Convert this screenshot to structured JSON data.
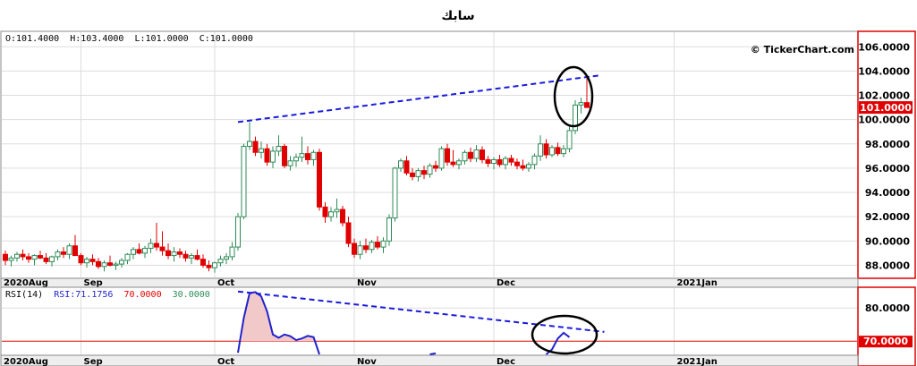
{
  "title": "سابك",
  "watermark": "© TickerChart.com",
  "ohlc_readout": {
    "open": "O:101.4000",
    "high": "H:103.4000",
    "low": "L:101.0000",
    "close": "C:101.0000"
  },
  "rsi_readout": {
    "label": "RSI(14)",
    "value": "RSI:71.1756",
    "upper": "70.0000",
    "lower": "30.0000"
  },
  "colors": {
    "up": "#2e8b57",
    "down": "#e00000",
    "trendline": "#1a1adc",
    "rsi_line": "#2222cc",
    "rsi_fill": "#f2c9c9",
    "overbought": "#e00000",
    "grid": "#dddddd",
    "frame": "#e00000",
    "panel_bg": "#eeeeee"
  },
  "chart_data": [
    {
      "type": "candlestick",
      "ylim": [
        87,
        107.2
      ],
      "y_ticks": [
        88,
        90,
        92,
        94,
        96,
        98,
        100,
        102,
        104,
        106
      ],
      "y_tick_labels": [
        "88.0000",
        "90.0000",
        "92.0000",
        "94.0000",
        "96.0000",
        "98.0000",
        "100.0000",
        "102.0000",
        "104.0000",
        "106.0000"
      ],
      "last_price_label": "101.0000",
      "last_price": 101.0,
      "x_labels": [
        {
          "label": "2020Aug",
          "index": 0
        },
        {
          "label": "Sep",
          "index": 13
        },
        {
          "label": "Oct",
          "index": 36
        },
        {
          "label": "Nov",
          "index": 60
        },
        {
          "label": "Dec",
          "index": 84
        },
        {
          "label": "2021Jan",
          "index": 115
        }
      ],
      "x_count": 140,
      "candles": [
        [
          88.9,
          89.2,
          88.0,
          88.4
        ],
        [
          88.4,
          88.8,
          87.9,
          88.6
        ],
        [
          88.6,
          89.1,
          88.3,
          88.9
        ],
        [
          88.9,
          89.3,
          88.4,
          88.7
        ],
        [
          88.7,
          89.0,
          88.2,
          88.5
        ],
        [
          88.5,
          88.9,
          88.0,
          88.8
        ],
        [
          88.8,
          89.2,
          88.5,
          88.6
        ],
        [
          88.6,
          89.0,
          88.1,
          88.3
        ],
        [
          88.3,
          88.8,
          87.9,
          88.7
        ],
        [
          88.7,
          89.3,
          88.4,
          89.1
        ],
        [
          89.1,
          89.5,
          88.6,
          88.9
        ],
        [
          88.9,
          89.8,
          88.5,
          89.6
        ],
        [
          89.6,
          90.5,
          88.9,
          88.8
        ],
        [
          88.8,
          89.0,
          88.0,
          88.2
        ],
        [
          88.2,
          88.7,
          87.8,
          88.5
        ],
        [
          88.5,
          88.9,
          88.0,
          88.3
        ],
        [
          88.3,
          88.6,
          87.7,
          87.9
        ],
        [
          87.9,
          88.4,
          87.5,
          88.2
        ],
        [
          88.2,
          88.8,
          87.9,
          88.0
        ],
        [
          88.0,
          88.3,
          87.6,
          88.1
        ],
        [
          88.1,
          88.6,
          87.8,
          88.4
        ],
        [
          88.4,
          89.0,
          88.1,
          88.9
        ],
        [
          88.9,
          89.5,
          88.5,
          89.3
        ],
        [
          89.3,
          89.8,
          88.9,
          89.0
        ],
        [
          89.0,
          89.6,
          88.6,
          89.4
        ],
        [
          89.4,
          90.2,
          89.0,
          89.8
        ],
        [
          89.8,
          91.5,
          89.2,
          89.5
        ],
        [
          89.5,
          90.8,
          88.8,
          89.2
        ],
        [
          89.2,
          89.8,
          88.5,
          88.8
        ],
        [
          88.8,
          89.5,
          88.3,
          89.1
        ],
        [
          89.1,
          89.4,
          88.6,
          88.9
        ],
        [
          88.9,
          89.2,
          88.3,
          88.6
        ],
        [
          88.6,
          89.0,
          88.1,
          88.8
        ],
        [
          88.8,
          89.3,
          88.4,
          88.5
        ],
        [
          88.5,
          88.9,
          87.8,
          88.0
        ],
        [
          88.0,
          88.4,
          87.5,
          87.8
        ],
        [
          87.8,
          88.3,
          87.4,
          88.2
        ],
        [
          88.2,
          88.8,
          87.9,
          88.5
        ],
        [
          88.5,
          89.0,
          88.1,
          88.7
        ],
        [
          88.7,
          89.9,
          88.4,
          89.5
        ],
        [
          89.5,
          92.3,
          89.2,
          92.0
        ],
        [
          92.0,
          98.0,
          91.8,
          97.8
        ],
        [
          97.8,
          99.8,
          97.5,
          98.2
        ],
        [
          98.2,
          98.6,
          97.0,
          97.3
        ],
        [
          97.3,
          98.2,
          96.8,
          97.6
        ],
        [
          97.6,
          98.0,
          96.2,
          96.5
        ],
        [
          96.5,
          97.8,
          96.0,
          97.4
        ],
        [
          97.4,
          98.7,
          97.0,
          97.8
        ],
        [
          97.8,
          98.0,
          96.0,
          96.2
        ],
        [
          96.2,
          97.0,
          95.8,
          96.6
        ],
        [
          96.6,
          97.2,
          96.1,
          96.9
        ],
        [
          96.9,
          98.6,
          96.5,
          97.2
        ],
        [
          97.2,
          97.8,
          96.3,
          96.7
        ],
        [
          96.7,
          97.5,
          96.2,
          97.3
        ],
        [
          97.3,
          97.6,
          92.5,
          92.8
        ],
        [
          92.8,
          93.2,
          91.5,
          92.0
        ],
        [
          92.0,
          92.8,
          91.6,
          92.4
        ],
        [
          92.4,
          93.5,
          91.9,
          92.6
        ],
        [
          92.6,
          92.9,
          91.2,
          91.5
        ],
        [
          91.5,
          92.0,
          89.5,
          89.8
        ],
        [
          89.8,
          90.2,
          88.6,
          88.9
        ],
        [
          88.9,
          90.0,
          88.5,
          89.6
        ],
        [
          89.6,
          90.2,
          89.0,
          89.3
        ],
        [
          89.3,
          90.1,
          89.0,
          89.9
        ],
        [
          89.9,
          90.4,
          89.3,
          89.5
        ],
        [
          89.5,
          90.3,
          89.0,
          90.0
        ],
        [
          90.0,
          92.2,
          89.6,
          91.9
        ],
        [
          91.9,
          96.1,
          91.6,
          96.0
        ],
        [
          96.0,
          96.8,
          95.7,
          96.6
        ],
        [
          96.6,
          97.0,
          95.4,
          95.6
        ],
        [
          95.6,
          96.0,
          95.0,
          95.3
        ],
        [
          95.3,
          96.0,
          94.9,
          95.8
        ],
        [
          95.8,
          96.2,
          95.1,
          95.5
        ],
        [
          95.5,
          96.4,
          95.2,
          96.2
        ],
        [
          96.2,
          96.6,
          95.7,
          96.0
        ],
        [
          96.0,
          97.8,
          95.8,
          97.6
        ],
        [
          97.6,
          98.0,
          96.2,
          96.5
        ],
        [
          96.5,
          97.5,
          96.1,
          96.3
        ],
        [
          96.3,
          96.8,
          95.9,
          96.6
        ],
        [
          96.6,
          97.5,
          96.3,
          97.3
        ],
        [
          97.3,
          97.7,
          96.5,
          96.8
        ],
        [
          96.8,
          97.9,
          96.5,
          97.5
        ],
        [
          97.5,
          97.8,
          96.4,
          96.7
        ],
        [
          96.7,
          97.0,
          96.1,
          96.4
        ],
        [
          96.4,
          96.9,
          95.9,
          96.7
        ],
        [
          96.7,
          97.1,
          96.1,
          96.3
        ],
        [
          96.3,
          97.0,
          95.9,
          96.8
        ],
        [
          96.8,
          97.1,
          96.2,
          96.5
        ],
        [
          96.5,
          96.8,
          95.9,
          96.2
        ],
        [
          96.2,
          96.7,
          95.8,
          96.0
        ],
        [
          96.0,
          96.5,
          95.7,
          96.3
        ],
        [
          96.3,
          97.2,
          95.9,
          97.0
        ],
        [
          97.0,
          98.7,
          96.6,
          98.0
        ],
        [
          98.0,
          98.4,
          96.8,
          97.1
        ],
        [
          97.1,
          97.9,
          96.9,
          97.7
        ],
        [
          97.7,
          98.1,
          97.0,
          97.2
        ],
        [
          97.2,
          97.9,
          96.9,
          97.6
        ],
        [
          97.6,
          99.4,
          97.3,
          99.1
        ],
        [
          99.1,
          101.6,
          98.8,
          101.2
        ],
        [
          101.2,
          101.8,
          100.5,
          101.4
        ],
        [
          101.4,
          103.4,
          101.0,
          101.0
        ]
      ],
      "trendline": {
        "start": [
          40,
          99.8
        ],
        "end": [
          101.5,
          103.6
        ],
        "extend_to_index": 102
      }
    },
    {
      "type": "line",
      "name": "RSI(14)",
      "ylim": [
        66,
        86
      ],
      "y_ticks": [
        80
      ],
      "y_tick_labels": [
        "80.0000"
      ],
      "overbought": 70,
      "overbought_label": "70.0000",
      "x_labels": [
        {
          "label": "2020Aug",
          "index": 0
        },
        {
          "label": "Sep",
          "index": 13
        },
        {
          "label": "Oct",
          "index": 36
        },
        {
          "label": "Nov",
          "index": 60
        },
        {
          "label": "Dec",
          "index": 84
        },
        {
          "label": "2021Jan",
          "index": 115
        }
      ],
      "segments": [
        [
          [
            40,
            66.5
          ],
          [
            41,
            77.0
          ],
          [
            42,
            84.5
          ],
          [
            43,
            84.8
          ],
          [
            44,
            83.5
          ],
          [
            45,
            79.0
          ],
          [
            46,
            72.0
          ],
          [
            47,
            71.0
          ],
          [
            48,
            72.0
          ],
          [
            49,
            71.5
          ],
          [
            50,
            70.3
          ],
          [
            51,
            70.8
          ],
          [
            52,
            71.6
          ],
          [
            53,
            71.2
          ],
          [
            54,
            66.0
          ]
        ],
        [
          [
            73,
            66.0
          ],
          [
            74,
            66.3
          ]
        ],
        [
          [
            93,
            66.0
          ],
          [
            94,
            67.5
          ],
          [
            95,
            70.8
          ],
          [
            96,
            72.5
          ],
          [
            97,
            71.2
          ]
        ]
      ],
      "trendline": {
        "start": [
          40,
          85.0
        ],
        "end": [
          103,
          72.8
        ]
      }
    }
  ]
}
